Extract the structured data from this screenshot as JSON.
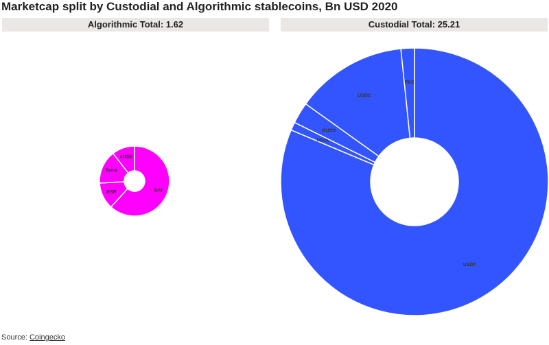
{
  "title": "Marketcap split by Custodial and Algorithmic stablecoins, Bn USD 2020",
  "source": {
    "label": "Source: ",
    "link_text": "Coingecko"
  },
  "colors": {
    "algorithmic": "#ff00ff",
    "custodial": "#3355ff",
    "header_bg": "#ebe7e4"
  },
  "chart_data": [
    {
      "type": "pie",
      "style": "donut",
      "panel_title": "Algorithmic Total: 1.62",
      "total": 1.62,
      "slices": [
        {
          "label": "DAI",
          "value": 1.0
        },
        {
          "label": "RSR",
          "value": 0.2
        },
        {
          "label": "Terra",
          "value": 0.25
        },
        {
          "label": "sUSD",
          "value": 0.17
        }
      ]
    },
    {
      "type": "pie",
      "style": "donut",
      "panel_title": "Custodial Total: 25.21",
      "total": 25.21,
      "slices": [
        {
          "label": "USDT",
          "value": 20.5
        },
        {
          "label": "HUSD",
          "value": 0.25
        },
        {
          "label": "BUSD",
          "value": 0.65
        },
        {
          "label": "USDC",
          "value": 3.4
        },
        {
          "label": "PAX",
          "value": 0.41
        }
      ]
    }
  ]
}
